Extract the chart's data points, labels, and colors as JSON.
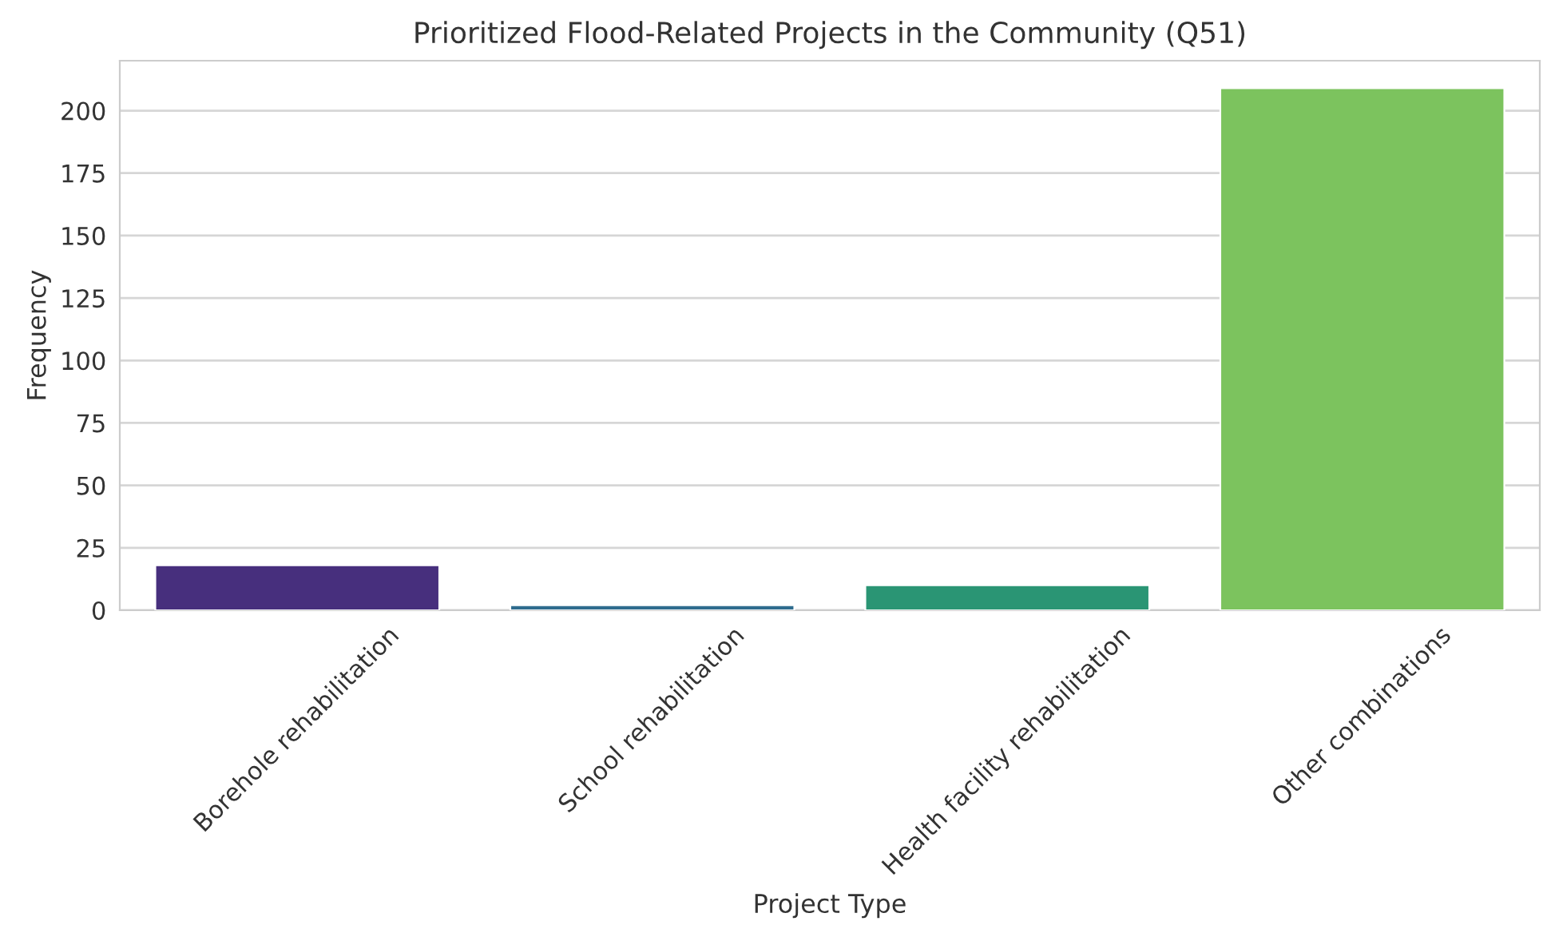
{
  "chart_data": {
    "type": "bar",
    "title": "Prioritized Flood-Related Projects in the Community (Q51)",
    "xlabel": "Project Type",
    "ylabel": "Frequency",
    "categories": [
      "Borehole rehabilitation",
      "School rehabilitation",
      "Health facility rehabilitation",
      "Other combinations"
    ],
    "values": [
      18,
      2,
      10,
      209
    ],
    "colors": [
      "#472f7d",
      "#2f6c8e",
      "#2a9574",
      "#7cc35e"
    ],
    "ylim": [
      0,
      220
    ],
    "yticks": [
      0,
      25,
      50,
      75,
      100,
      125,
      150,
      175,
      200
    ],
    "grid": "y"
  }
}
